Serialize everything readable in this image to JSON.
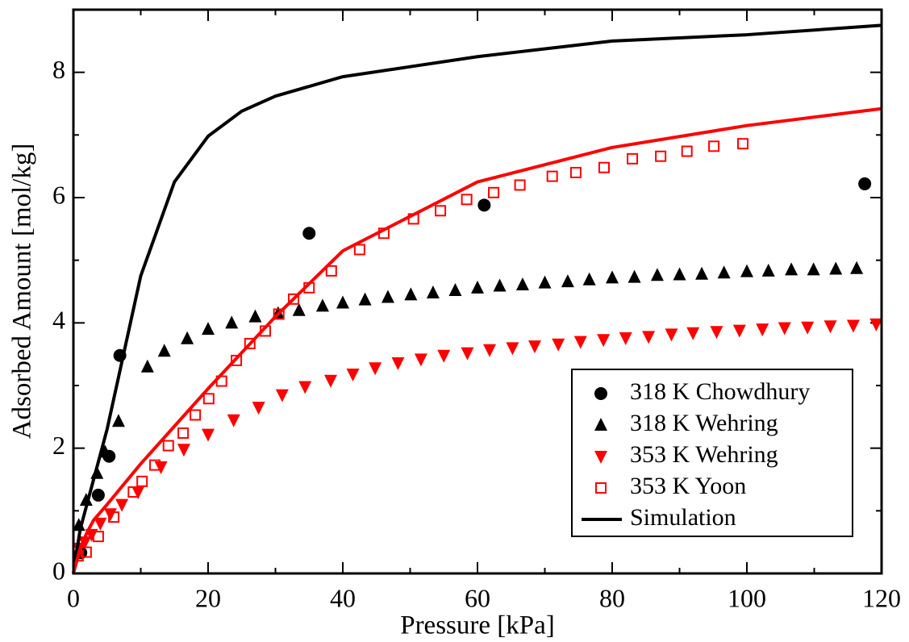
{
  "chart_data": {
    "type": "scatter",
    "xlabel": "Pressure [kPa]",
    "ylabel": "Adsorbed Amount [mol/kg]",
    "xlim": [
      0,
      120
    ],
    "ylim": [
      0,
      9
    ],
    "xticks": [
      0,
      20,
      40,
      60,
      80,
      100,
      120
    ],
    "yticks": [
      0,
      2,
      4,
      6,
      8
    ],
    "xminorticks": [
      10,
      30,
      50,
      70,
      90,
      110
    ],
    "yminorticks": [
      1,
      3,
      5,
      7
    ],
    "legend": "lower right",
    "series": [
      {
        "name": "318 K Chowdhury",
        "marker": "circle",
        "color": "#000000",
        "x": [
          1.1,
          3.7,
          5.3,
          6.9,
          35.0,
          61.0,
          117.5
        ],
        "values": [
          0.33,
          1.25,
          1.87,
          3.48,
          5.43,
          5.88,
          6.22
        ]
      },
      {
        "name": "318 K Wehring",
        "marker": "triangle-up",
        "color": "#000000",
        "x": [
          0.8,
          1.9,
          3.5,
          4.7,
          6.7,
          11.0,
          13.5,
          16.9,
          20.0,
          23.5,
          27.0,
          30.4,
          33.5,
          37.0,
          40.0,
          43.3,
          46.7,
          50.1,
          53.4,
          56.7,
          60.0,
          63.3,
          66.7,
          70.0,
          73.4,
          76.6,
          80.0,
          83.3,
          86.7,
          90.0,
          93.3,
          96.6,
          100.0,
          103.2,
          106.6,
          109.9,
          113.2,
          116.3
        ],
        "values": [
          0.77,
          1.17,
          1.6,
          1.94,
          2.43,
          3.3,
          3.55,
          3.75,
          3.9,
          4.0,
          4.1,
          4.15,
          4.2,
          4.27,
          4.32,
          4.37,
          4.41,
          4.45,
          4.48,
          4.52,
          4.56,
          4.59,
          4.61,
          4.64,
          4.66,
          4.69,
          4.72,
          4.73,
          4.76,
          4.77,
          4.78,
          4.8,
          4.82,
          4.83,
          4.85,
          4.85,
          4.86,
          4.87
        ]
      },
      {
        "name": "353 K Wehring",
        "marker": "triangle-down",
        "color": "#ff0000",
        "x": [
          0.8,
          1.7,
          2.7,
          4.0,
          5.5,
          7.2,
          9.6,
          13.0,
          16.4,
          20.0,
          23.8,
          27.5,
          31.0,
          34.4,
          38.2,
          41.5,
          44.8,
          48.2,
          51.6,
          55.0,
          58.5,
          61.8,
          65.2,
          68.5,
          72.0,
          75.3,
          78.7,
          82.0,
          85.4,
          88.8,
          92.0,
          95.5,
          98.9,
          102.3,
          105.6,
          109.0,
          112.4,
          115.8,
          119.2
        ],
        "values": [
          0.4,
          0.5,
          0.62,
          0.8,
          0.95,
          1.1,
          1.3,
          1.7,
          1.98,
          2.22,
          2.45,
          2.65,
          2.85,
          2.98,
          3.08,
          3.18,
          3.28,
          3.36,
          3.42,
          3.48,
          3.52,
          3.57,
          3.6,
          3.63,
          3.66,
          3.7,
          3.73,
          3.76,
          3.78,
          3.82,
          3.84,
          3.86,
          3.88,
          3.9,
          3.92,
          3.93,
          3.95,
          3.96,
          3.98
        ]
      },
      {
        "name": "353 K Yoon",
        "marker": "square-open",
        "color": "#ff0000",
        "x": [
          0.7,
          1.9,
          3.7,
          6.0,
          8.9,
          10.2,
          12.1,
          14.1,
          16.3,
          18.1,
          20.1,
          22.0,
          24.2,
          26.2,
          28.5,
          30.5,
          32.7,
          35.0,
          38.3,
          42.5,
          46.1,
          50.5,
          54.5,
          58.4,
          62.4,
          66.3,
          71.1,
          74.6,
          78.8,
          83.0,
          87.2,
          91.1,
          95.1,
          99.4
        ],
        "values": [
          0.28,
          0.34,
          0.59,
          0.9,
          1.3,
          1.47,
          1.73,
          2.04,
          2.24,
          2.53,
          2.79,
          3.07,
          3.4,
          3.67,
          3.87,
          4.14,
          4.38,
          4.56,
          4.83,
          5.17,
          5.43,
          5.66,
          5.79,
          5.97,
          6.08,
          6.2,
          6.34,
          6.4,
          6.48,
          6.62,
          6.66,
          6.74,
          6.82,
          6.86
        ]
      },
      {
        "name": "Simulation",
        "marker": "line",
        "color": "#000000",
        "x": [
          0,
          1,
          2,
          5,
          10,
          15,
          20,
          25,
          30,
          40,
          60,
          80,
          100,
          120
        ],
        "values": [
          0,
          0.7,
          1.1,
          2.3,
          4.75,
          6.25,
          6.98,
          7.38,
          7.62,
          7.93,
          8.25,
          8.5,
          8.6,
          8.75
        ]
      },
      {
        "marker": "line",
        "color": "#ff0000",
        "x": [
          0,
          1,
          2,
          3,
          5,
          10,
          15,
          20,
          30,
          40,
          60,
          80,
          100,
          120
        ],
        "values": [
          0,
          0.4,
          0.65,
          0.85,
          1.1,
          1.75,
          2.35,
          2.95,
          4.1,
          5.15,
          6.25,
          6.8,
          7.15,
          7.42
        ]
      }
    ]
  }
}
